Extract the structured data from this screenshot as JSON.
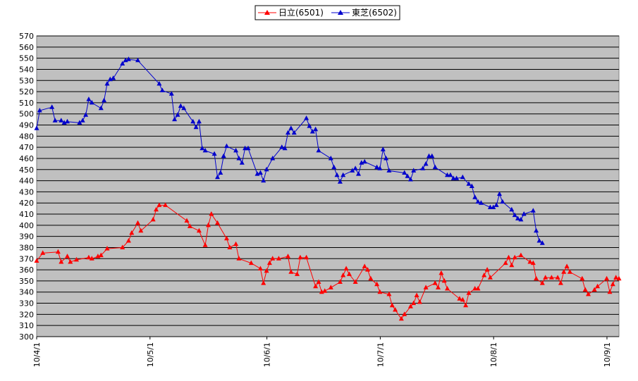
{
  "chart_data": {
    "type": "line",
    "title": "",
    "xlabel": "",
    "ylabel": "",
    "ylim": [
      300,
      570
    ],
    "ytick_step": 10,
    "x_tick_labels": [
      "10/4/1",
      "10/5/1",
      "10/6/1",
      "10/7/1",
      "10/8/1",
      "10/9/1"
    ],
    "grid": true,
    "legend": "top-center",
    "background_color": "#c0c0c0",
    "series": [
      {
        "name": "日立(6501)",
        "color": "#ff0000",
        "marker": "triangle",
        "values": [
          [
            0,
            368
          ],
          [
            2,
            375
          ],
          [
            7,
            376
          ],
          [
            8,
            367
          ],
          [
            10,
            372
          ],
          [
            11,
            367
          ],
          [
            13,
            369
          ],
          [
            17,
            371
          ],
          [
            18,
            370
          ],
          [
            20,
            372
          ],
          [
            21,
            373
          ],
          [
            23,
            379
          ],
          [
            28,
            380
          ],
          [
            30,
            386
          ],
          [
            31,
            393
          ],
          [
            33,
            402
          ],
          [
            34,
            395
          ],
          [
            38,
            405
          ],
          [
            39,
            414
          ],
          [
            40,
            418
          ],
          [
            42,
            418
          ],
          [
            49,
            404
          ],
          [
            50,
            399
          ],
          [
            53,
            395
          ],
          [
            55,
            382
          ],
          [
            56,
            400
          ],
          [
            57,
            410
          ],
          [
            59,
            402
          ],
          [
            62,
            388
          ],
          [
            63,
            380
          ],
          [
            65,
            383
          ],
          [
            66,
            370
          ],
          [
            70,
            366
          ],
          [
            73,
            361
          ],
          [
            74,
            348
          ],
          [
            75,
            359
          ],
          [
            76,
            366
          ],
          [
            77,
            370
          ],
          [
            79,
            370
          ],
          [
            82,
            372
          ],
          [
            83,
            358
          ],
          [
            85,
            356
          ],
          [
            86,
            371
          ],
          [
            88,
            371
          ],
          [
            91,
            345
          ],
          [
            92,
            349
          ],
          [
            93,
            340
          ],
          [
            94,
            341
          ],
          [
            96,
            344
          ],
          [
            99,
            349
          ],
          [
            100,
            355
          ],
          [
            101,
            361
          ],
          [
            102,
            356
          ],
          [
            104,
            349
          ],
          [
            107,
            363
          ],
          [
            108,
            360
          ],
          [
            109,
            352
          ],
          [
            111,
            347
          ],
          [
            112,
            340
          ],
          [
            115,
            338
          ],
          [
            116,
            328
          ],
          [
            117,
            324
          ],
          [
            119,
            316
          ],
          [
            120,
            320
          ],
          [
            122,
            327
          ],
          [
            123,
            330
          ],
          [
            124,
            337
          ],
          [
            125,
            331
          ],
          [
            127,
            344
          ],
          [
            130,
            348
          ],
          [
            131,
            344
          ],
          [
            132,
            357
          ],
          [
            133,
            350
          ],
          [
            134,
            343
          ],
          [
            138,
            334
          ],
          [
            139,
            333
          ],
          [
            140,
            328
          ],
          [
            141,
            339
          ],
          [
            143,
            343
          ],
          [
            144,
            343
          ],
          [
            146,
            355
          ],
          [
            147,
            360
          ],
          [
            148,
            353
          ],
          [
            153,
            366
          ],
          [
            154,
            371
          ],
          [
            155,
            364
          ],
          [
            156,
            371
          ],
          [
            158,
            373
          ],
          [
            161,
            367
          ],
          [
            162,
            366
          ],
          [
            163,
            352
          ],
          [
            165,
            348
          ],
          [
            166,
            353
          ],
          [
            168,
            353
          ],
          [
            170,
            353
          ],
          [
            171,
            348
          ],
          [
            172,
            358
          ],
          [
            173,
            363
          ],
          [
            174,
            358
          ],
          [
            178,
            352
          ],
          [
            179,
            342
          ],
          [
            180,
            338
          ],
          [
            182,
            342
          ],
          [
            183,
            345
          ],
          [
            186,
            352
          ],
          [
            187,
            340
          ],
          [
            188,
            347
          ],
          [
            189,
            353
          ],
          [
            190,
            352
          ]
        ]
      },
      {
        "name": "東芝(6502)",
        "color": "#0000cc",
        "marker": "triangle",
        "values": [
          [
            0,
            487
          ],
          [
            1,
            503
          ],
          [
            5,
            506
          ],
          [
            6,
            494
          ],
          [
            8,
            494
          ],
          [
            9,
            492
          ],
          [
            10,
            493
          ],
          [
            14,
            492
          ],
          [
            15,
            494
          ],
          [
            16,
            499
          ],
          [
            17,
            513
          ],
          [
            18,
            510
          ],
          [
            21,
            505
          ],
          [
            22,
            512
          ],
          [
            23,
            527
          ],
          [
            24,
            531
          ],
          [
            25,
            532
          ],
          [
            28,
            545
          ],
          [
            29,
            548
          ],
          [
            30,
            549
          ],
          [
            33,
            548
          ],
          [
            40,
            527
          ],
          [
            41,
            521
          ],
          [
            44,
            518
          ],
          [
            45,
            495
          ],
          [
            46,
            499
          ],
          [
            47,
            507
          ],
          [
            48,
            505
          ],
          [
            51,
            493
          ],
          [
            52,
            488
          ],
          [
            53,
            493
          ],
          [
            54,
            469
          ],
          [
            55,
            467
          ],
          [
            58,
            464
          ],
          [
            59,
            443
          ],
          [
            60,
            447
          ],
          [
            61,
            462
          ],
          [
            62,
            471
          ],
          [
            65,
            467
          ],
          [
            66,
            460
          ],
          [
            67,
            456
          ],
          [
            68,
            469
          ],
          [
            69,
            469
          ],
          [
            72,
            446
          ],
          [
            73,
            447
          ],
          [
            74,
            440
          ],
          [
            75,
            450
          ],
          [
            77,
            460
          ],
          [
            80,
            470
          ],
          [
            81,
            469
          ],
          [
            82,
            483
          ],
          [
            83,
            487
          ],
          [
            84,
            483
          ],
          [
            88,
            496
          ],
          [
            89,
            489
          ],
          [
            90,
            484
          ],
          [
            91,
            486
          ],
          [
            92,
            467
          ],
          [
            96,
            460
          ],
          [
            97,
            452
          ],
          [
            98,
            445
          ],
          [
            99,
            439
          ],
          [
            100,
            445
          ],
          [
            103,
            449
          ],
          [
            104,
            451
          ],
          [
            105,
            446
          ],
          [
            106,
            456
          ],
          [
            107,
            457
          ],
          [
            111,
            452
          ],
          [
            112,
            451
          ],
          [
            113,
            468
          ],
          [
            114,
            460
          ],
          [
            115,
            449
          ],
          [
            120,
            447
          ],
          [
            121,
            444
          ],
          [
            122,
            441
          ],
          [
            123,
            449
          ],
          [
            126,
            451
          ],
          [
            127,
            455
          ],
          [
            128,
            462
          ],
          [
            129,
            462
          ],
          [
            130,
            452
          ],
          [
            134,
            445
          ],
          [
            135,
            445
          ],
          [
            136,
            442
          ],
          [
            137,
            442
          ],
          [
            139,
            443
          ],
          [
            141,
            437
          ],
          [
            142,
            435
          ],
          [
            143,
            425
          ],
          [
            144,
            421
          ],
          [
            145,
            420
          ],
          [
            148,
            416
          ],
          [
            149,
            416
          ],
          [
            150,
            418
          ],
          [
            151,
            428
          ],
          [
            152,
            421
          ],
          [
            155,
            414
          ],
          [
            156,
            409
          ],
          [
            157,
            406
          ],
          [
            158,
            405
          ],
          [
            159,
            410
          ],
          [
            162,
            413
          ],
          [
            163,
            395
          ],
          [
            164,
            386
          ],
          [
            165,
            384
          ]
        ]
      }
    ]
  }
}
